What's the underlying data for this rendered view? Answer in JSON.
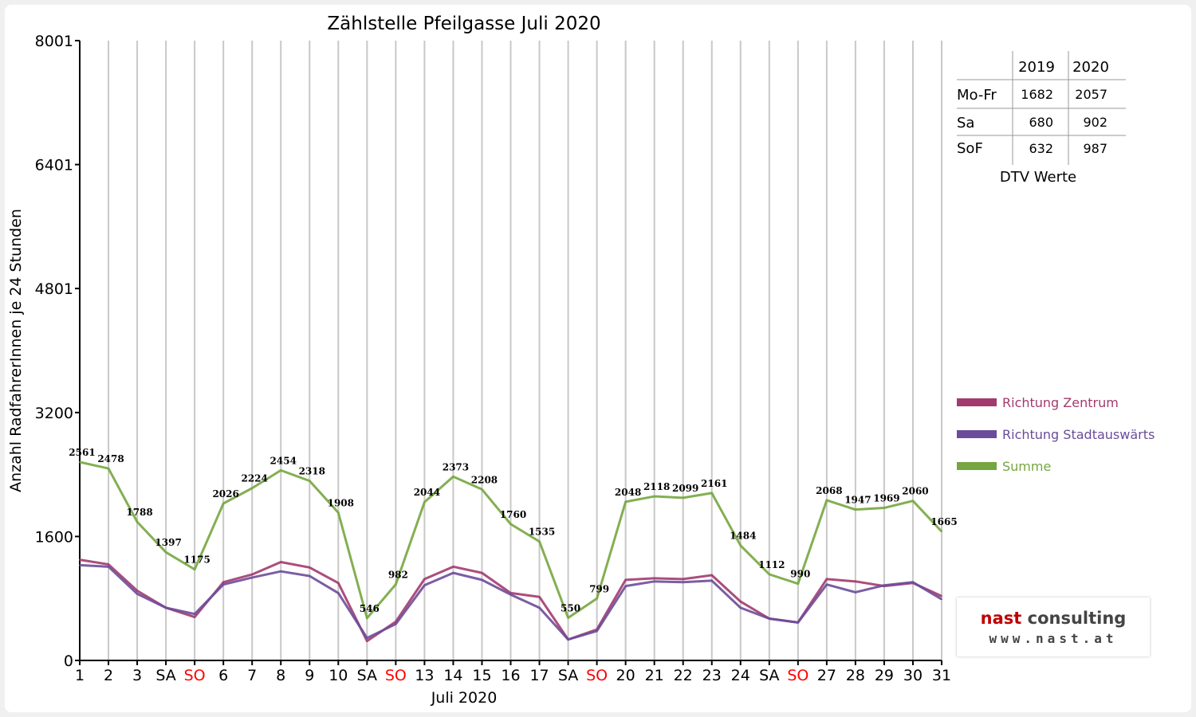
{
  "chart_data": {
    "type": "line",
    "title": "Zählstelle Pfeilgasse Juli 2020",
    "xlabel": "Juli 2020",
    "ylabel": "Anzahl RadfahrerInnen je 24 Stunden",
    "ylim": [
      0,
      8001
    ],
    "yticks": [
      "0",
      "1600",
      "3200",
      "4801",
      "6401",
      "8001"
    ],
    "yticks_values": [
      0,
      1600,
      3200,
      4801,
      6401,
      8001
    ],
    "categories": [
      "1",
      "2",
      "3",
      "SA",
      "SO",
      "6",
      "7",
      "8",
      "9",
      "10",
      "SA",
      "SO",
      "13",
      "14",
      "15",
      "16",
      "17",
      "SA",
      "SO",
      "20",
      "21",
      "22",
      "23",
      "24",
      "SA",
      "SO",
      "27",
      "28",
      "29",
      "30",
      "31"
    ],
    "sunday_label_color": "#ff0000",
    "grid": "vertical",
    "legend_position": "right",
    "series": [
      {
        "name": "Richtung Zentrum",
        "color": "#a23b6e",
        "values": [
          1300,
          1240,
          900,
          680,
          560,
          1010,
          1110,
          1270,
          1200,
          1000,
          250,
          500,
          1050,
          1210,
          1130,
          870,
          820,
          270,
          400,
          1040,
          1060,
          1050,
          1100,
          760,
          540,
          490,
          1050,
          1020,
          960,
          1000,
          830
        ]
      },
      {
        "name": "Richtung Stadtauswärts",
        "color": "#6b4c9a",
        "values": [
          1230,
          1210,
          860,
          680,
          600,
          980,
          1070,
          1150,
          1090,
          870,
          290,
          470,
          970,
          1130,
          1040,
          850,
          680,
          270,
          380,
          960,
          1020,
          1010,
          1030,
          680,
          540,
          490,
          980,
          880,
          970,
          1010,
          790
        ]
      },
      {
        "name": "Summe",
        "color": "#76a63f",
        "values": [
          2561,
          2478,
          1788,
          1397,
          1175,
          2026,
          2224,
          2454,
          2318,
          1908,
          546,
          982,
          2044,
          2373,
          2208,
          1760,
          1535,
          550,
          799,
          2048,
          2118,
          2099,
          2161,
          1484,
          1112,
          990,
          2068,
          1947,
          1969,
          2060,
          1665
        ],
        "data_labels": true
      }
    ]
  },
  "dtv_table": {
    "headers": [
      "2019",
      "2020"
    ],
    "rows": [
      {
        "label": "Mo-Fr",
        "v2019": "1682",
        "v2020": "2057"
      },
      {
        "label": "Sa",
        "v2019": "680",
        "v2020": "902"
      },
      {
        "label": "SoF",
        "v2019": "632",
        "v2020": "987"
      }
    ],
    "caption": "DTV Werte"
  },
  "logo": {
    "line1_a": "nast",
    "line1_b": " consulting",
    "line2": "www.nast.at"
  }
}
